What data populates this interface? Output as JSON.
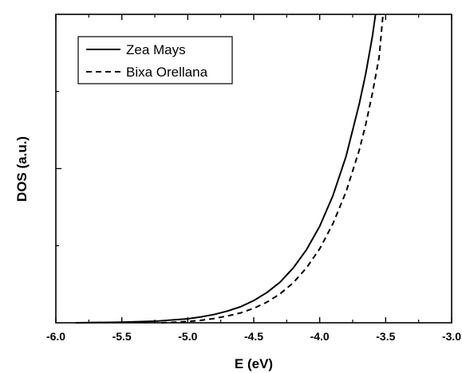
{
  "chart_data": {
    "type": "line",
    "xlabel": "E (eV)",
    "ylabel": "DOS (a.u.)",
    "xlim": [
      -6.0,
      -3.0
    ],
    "ylim": [
      0,
      1
    ],
    "x_ticks": [
      "-6.0",
      "-5.5",
      "-5.0",
      "-4.5",
      "-4.0",
      "-3.5",
      "-3.0"
    ],
    "y_tick_labels": "none",
    "grid": false,
    "legend_position": "top-left",
    "series": [
      {
        "name": "Zea Mays",
        "style": "solid",
        "color": "#000000",
        "x": [
          -5.85,
          -5.5,
          -5.25,
          -5.0,
          -4.9,
          -4.8,
          -4.7,
          -4.6,
          -4.5,
          -4.4,
          -4.3,
          -4.2,
          -4.1,
          -4.0,
          -3.9,
          -3.8,
          -3.7,
          -3.65,
          -3.6,
          -3.577
        ],
        "y": [
          0.0,
          0.002,
          0.005,
          0.013,
          0.019,
          0.027,
          0.038,
          0.052,
          0.072,
          0.098,
          0.132,
          0.178,
          0.237,
          0.313,
          0.412,
          0.54,
          0.71,
          0.81,
          0.93,
          1.0
        ]
      },
      {
        "name": "Bixa Orellana",
        "style": "dashed",
        "color": "#000000",
        "x": [
          -5.2,
          -5.0,
          -4.9,
          -4.8,
          -4.7,
          -4.6,
          -4.5,
          -4.4,
          -4.3,
          -4.2,
          -4.1,
          -4.0,
          -3.9,
          -3.8,
          -3.7,
          -3.65,
          -3.6,
          -3.55,
          -3.52
        ],
        "y": [
          0.0,
          0.004,
          0.008,
          0.014,
          0.022,
          0.032,
          0.047,
          0.067,
          0.094,
          0.13,
          0.178,
          0.24,
          0.321,
          0.425,
          0.56,
          0.645,
          0.745,
          0.86,
          1.0
        ]
      }
    ]
  }
}
